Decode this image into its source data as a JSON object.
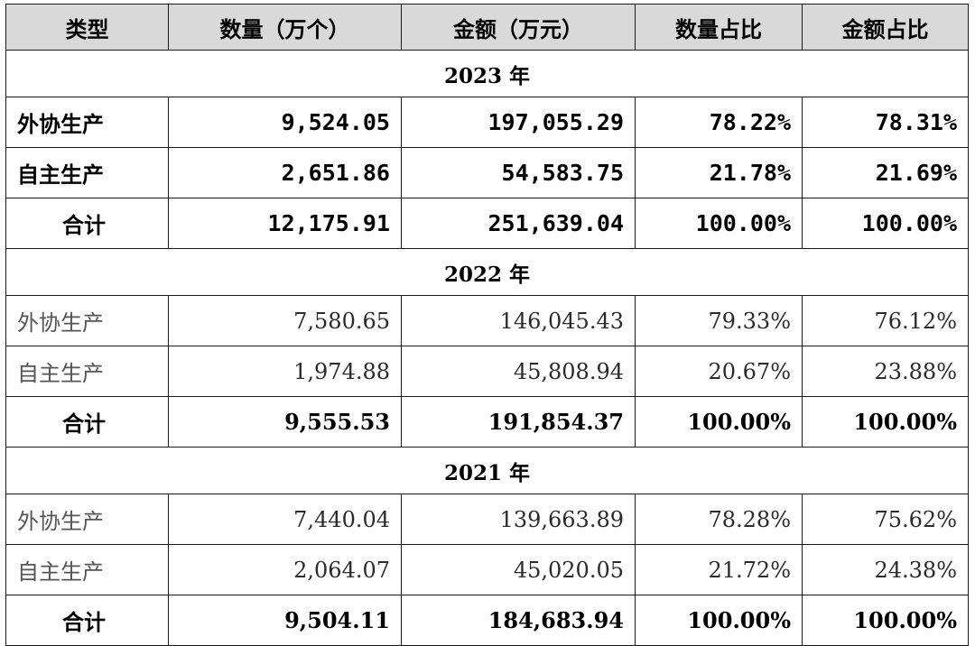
{
  "headers": [
    "类型",
    "数量（万个）",
    "金额（万元）",
    "数量占比",
    "金额占比"
  ],
  "sections": [
    {
      "year": "2023 年",
      "rows": [
        {
          "type": "外协生产",
          "qty": "9,524.05",
          "amount": "197,055.29",
          "qty_pct": "78.22%",
          "amt_pct": "78.31%"
        },
        {
          "type": "自主生产",
          "qty": "2,651.86",
          "amount": "54,583.75",
          "qty_pct": "21.78%",
          "amt_pct": "21.69%"
        }
      ],
      "total": {
        "type": "合计",
        "qty": "12,175.91",
        "amount": "251,639.04",
        "qty_pct": "100.00%",
        "amt_pct": "100.00%"
      }
    },
    {
      "year": "2022 年",
      "rows": [
        {
          "type": "外协生产",
          "qty": "7,580.65",
          "amount": "146,045.43",
          "qty_pct": "79.33%",
          "amt_pct": "76.12%"
        },
        {
          "type": "自主生产",
          "qty": "1,974.88",
          "amount": "45,808.94",
          "qty_pct": "20.67%",
          "amt_pct": "23.88%"
        }
      ],
      "total": {
        "type": "合计",
        "qty": "9,555.53",
        "amount": "191,854.37",
        "qty_pct": "100.00%",
        "amt_pct": "100.00%"
      }
    },
    {
      "year": "2021 年",
      "rows": [
        {
          "type": "外协生产",
          "qty": "7,440.04",
          "amount": "139,663.89",
          "qty_pct": "78.28%",
          "amt_pct": "75.62%"
        },
        {
          "type": "自主生产",
          "qty": "2,064.07",
          "amount": "45,020.05",
          "qty_pct": "21.72%",
          "amt_pct": "24.38%"
        }
      ],
      "total": {
        "type": "合计",
        "qty": "9,504.11",
        "amount": "184,683.94",
        "qty_pct": "100.00%",
        "amt_pct": "100.00%"
      }
    }
  ]
}
